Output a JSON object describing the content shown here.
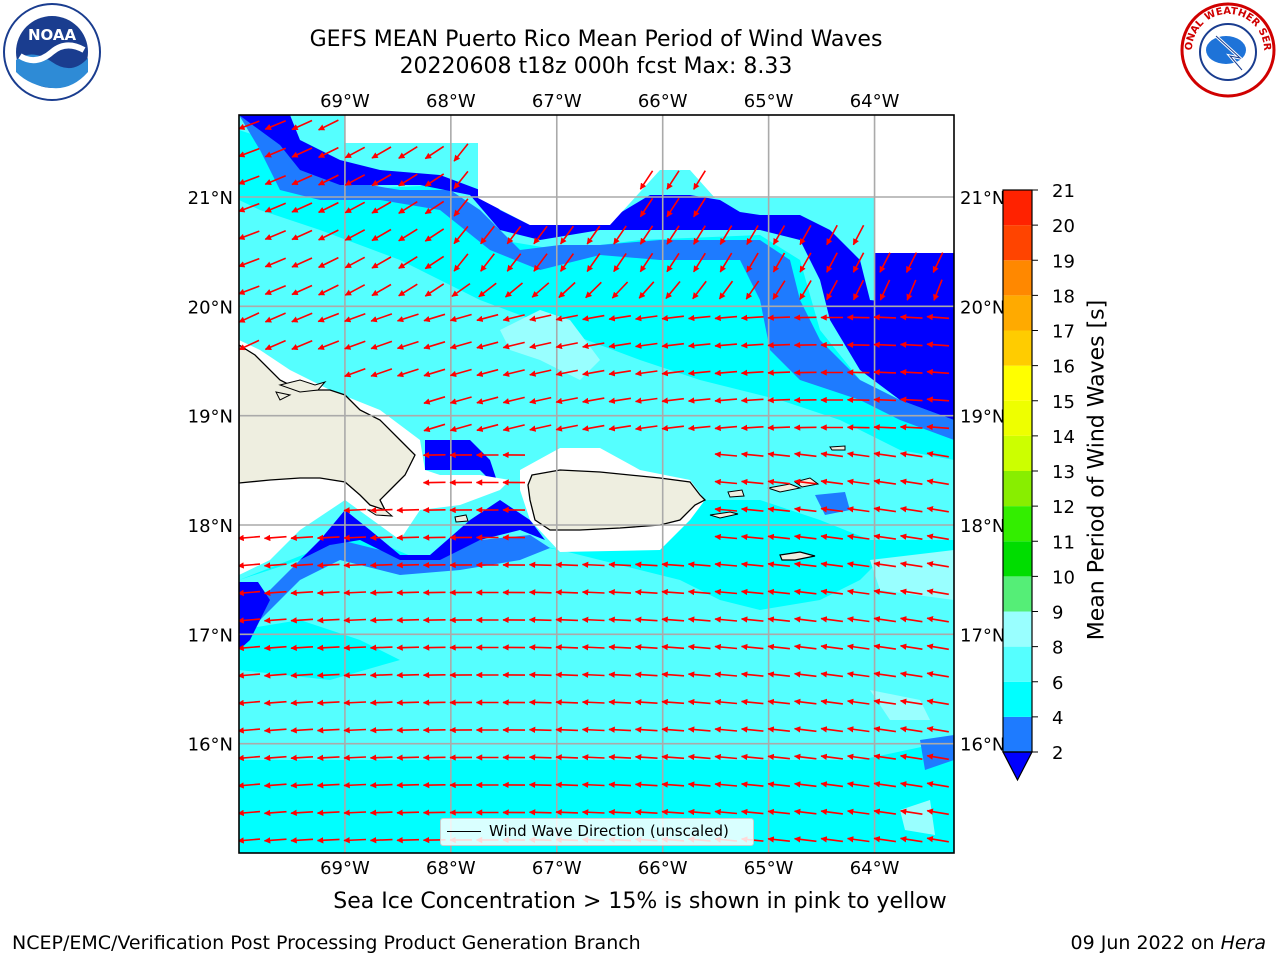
{
  "header": {
    "title_line1": "GEFS MEAN Puerto Rico Mean Period of Wind Waves",
    "title_line2": "20220608 t18z 000h fcst   Max: 8.33"
  },
  "logos": {
    "left": "NOAA",
    "right": "NATIONAL WEATHER SERVICE"
  },
  "map": {
    "lon_ticks": [
      "69°W",
      "68°W",
      "67°W",
      "66°W",
      "65°W",
      "64°W"
    ],
    "lat_ticks": [
      "21°N",
      "20°N",
      "19°N",
      "18°N",
      "17°N",
      "16°N"
    ],
    "lon_values": [
      -69,
      -68,
      -67,
      -66,
      -65,
      -64
    ],
    "lat_values": [
      21,
      20,
      19,
      18,
      17,
      16
    ],
    "lon_range": [
      -70,
      -63.25
    ],
    "lat_range": [
      15,
      21.75
    ],
    "arrow_color": "#ff0000",
    "land_color": "#eeeee0"
  },
  "legend": {
    "label": "Wind Wave Direction (unscaled)"
  },
  "colorbar": {
    "title": "Mean Period of Wind Waves [s]",
    "levels": [
      2,
      4,
      6,
      8,
      9,
      10,
      11,
      12,
      13,
      14,
      15,
      16,
      17,
      18,
      19,
      20,
      21
    ],
    "tick_labels": [
      "2",
      "4",
      "6",
      "8",
      "9",
      "10",
      "11",
      "12",
      "13",
      "14",
      "15",
      "16",
      "17",
      "18",
      "19",
      "20",
      "21"
    ],
    "colors": [
      "#1e7bff",
      "#00ffff",
      "#55ffff",
      "#99ffff",
      "#55ee77",
      "#00dd00",
      "#33ee00",
      "#88ee00",
      "#ccff00",
      "#eeff00",
      "#ffff00",
      "#ffcc00",
      "#ffaa00",
      "#ff8800",
      "#ff4400",
      "#ff2200"
    ],
    "under_color": "#0000ff",
    "extend": "min"
  },
  "footer": {
    "ice_note": "Sea Ice Concentration > 15% is shown in pink to yellow",
    "credit": "NCEP/EMC/Verification Post Processing Product Generation Branch",
    "date": "09 Jun 2022 on ",
    "machine": "Hera"
  }
}
